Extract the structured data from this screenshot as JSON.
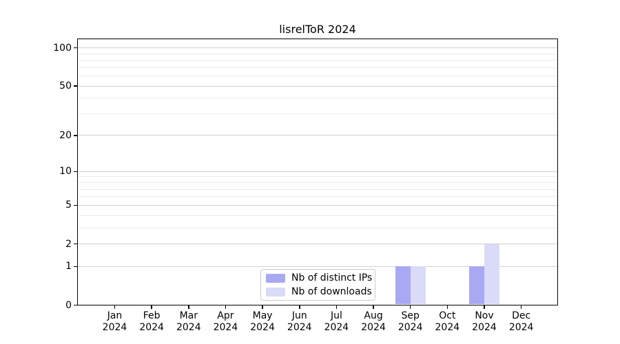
{
  "chart_data": {
    "type": "bar",
    "title": "lisrelToR 2024",
    "categories": [
      "Jan",
      "Feb",
      "Mar",
      "Apr",
      "May",
      "Jun",
      "Jul",
      "Aug",
      "Sep",
      "Oct",
      "Nov",
      "Dec"
    ],
    "year_label": "2024",
    "series": [
      {
        "name": "Nb of distinct IPs",
        "color": "#a9a9f3",
        "values": [
          0,
          0,
          0,
          0,
          0,
          0,
          0,
          0,
          1,
          0,
          1,
          0
        ]
      },
      {
        "name": "Nb of downloads",
        "color": "#dadaf9",
        "values": [
          0,
          0,
          0,
          0,
          0,
          0,
          0,
          0,
          1,
          0,
          2,
          0
        ]
      }
    ],
    "xlabel": "",
    "ylabel": "",
    "yscale": "log1p",
    "ylim": [
      0,
      117
    ],
    "yticks": [
      0,
      1,
      2,
      5,
      10,
      20,
      50,
      100
    ],
    "minor_gridlines": [
      3,
      4,
      6,
      7,
      8,
      9,
      30,
      40,
      60,
      70,
      80,
      90
    ],
    "grid": true,
    "legend_position": "lower center",
    "colors": {
      "axis": "#000000",
      "major_grid": "#d0d0d0",
      "minor_grid": "#ebebeb",
      "background": "#ffffff"
    }
  }
}
